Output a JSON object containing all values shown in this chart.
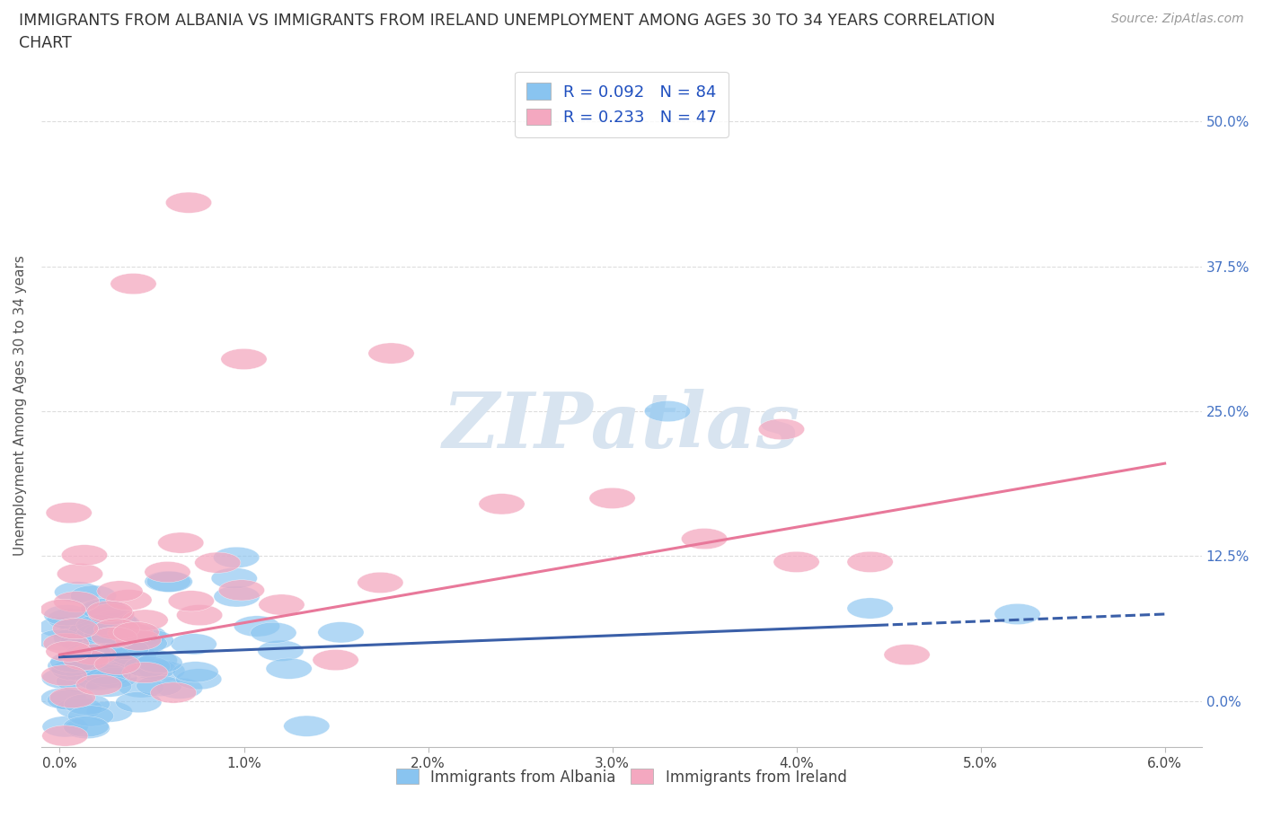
{
  "title_line1": "IMMIGRANTS FROM ALBANIA VS IMMIGRANTS FROM IRELAND UNEMPLOYMENT AMONG AGES 30 TO 34 YEARS CORRELATION",
  "title_line2": "CHART",
  "source_text": "Source: ZipAtlas.com",
  "ylabel": "Unemployment Among Ages 30 to 34 years",
  "xlim": [
    -0.001,
    0.062
  ],
  "ylim": [
    -0.04,
    0.55
  ],
  "xticks": [
    0.0,
    0.01,
    0.02,
    0.03,
    0.04,
    0.05,
    0.06
  ],
  "xtick_labels": [
    "0.0%",
    "1.0%",
    "2.0%",
    "3.0%",
    "4.0%",
    "5.0%",
    "6.0%"
  ],
  "yticks": [
    0.0,
    0.125,
    0.25,
    0.375,
    0.5
  ],
  "ytick_labels": [
    "0.0%",
    "12.5%",
    "25.0%",
    "37.5%",
    "50.0%"
  ],
  "albania_color": "#89C4F0",
  "ireland_color": "#F4A8C0",
  "albania_line_color": "#3A5FA8",
  "ireland_line_color": "#E8789A",
  "R_albania": 0.092,
  "N_albania": 84,
  "R_ireland": 0.233,
  "N_ireland": 47,
  "legend_color": "#1F4FBF",
  "watermark": "ZIPatlas",
  "watermark_color": "#D8E4F0",
  "background_color": "#FFFFFF",
  "grid_color": "#DDDDDD",
  "tick_color": "#4472C4"
}
